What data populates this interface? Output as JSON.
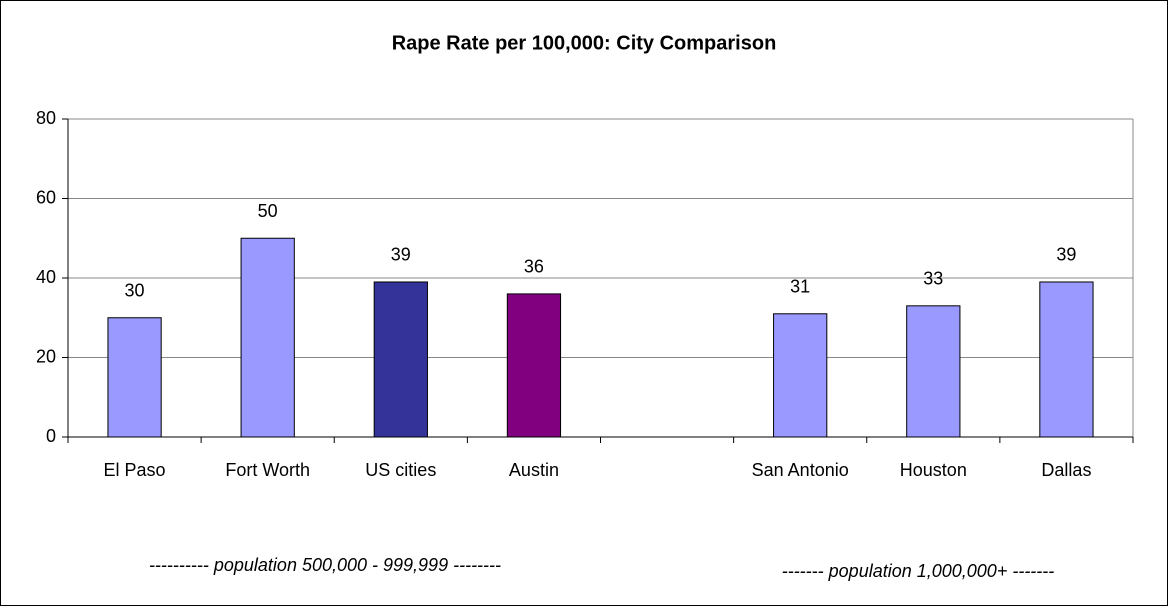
{
  "chart_data": {
    "type": "bar",
    "title": "Rape Rate per 100,000: City Comparison",
    "categories": [
      "El Paso",
      "Fort Worth",
      "US cities",
      "Austin",
      null,
      "San Antonio",
      "Houston",
      "Dallas"
    ],
    "values": [
      30,
      50,
      39,
      36,
      null,
      31,
      33,
      39
    ],
    "colors": [
      "#9999ff",
      "#9999ff",
      "#333399",
      "#800080",
      null,
      "#9999ff",
      "#9999ff",
      "#9999ff"
    ],
    "ylim": [
      0,
      80
    ],
    "yticks": [
      0,
      20,
      40,
      60,
      80
    ],
    "grid": true,
    "annotations": [
      "---------- population 500,000 - 999,999 --------",
      "------- population 1,000,000+ -------"
    ]
  }
}
